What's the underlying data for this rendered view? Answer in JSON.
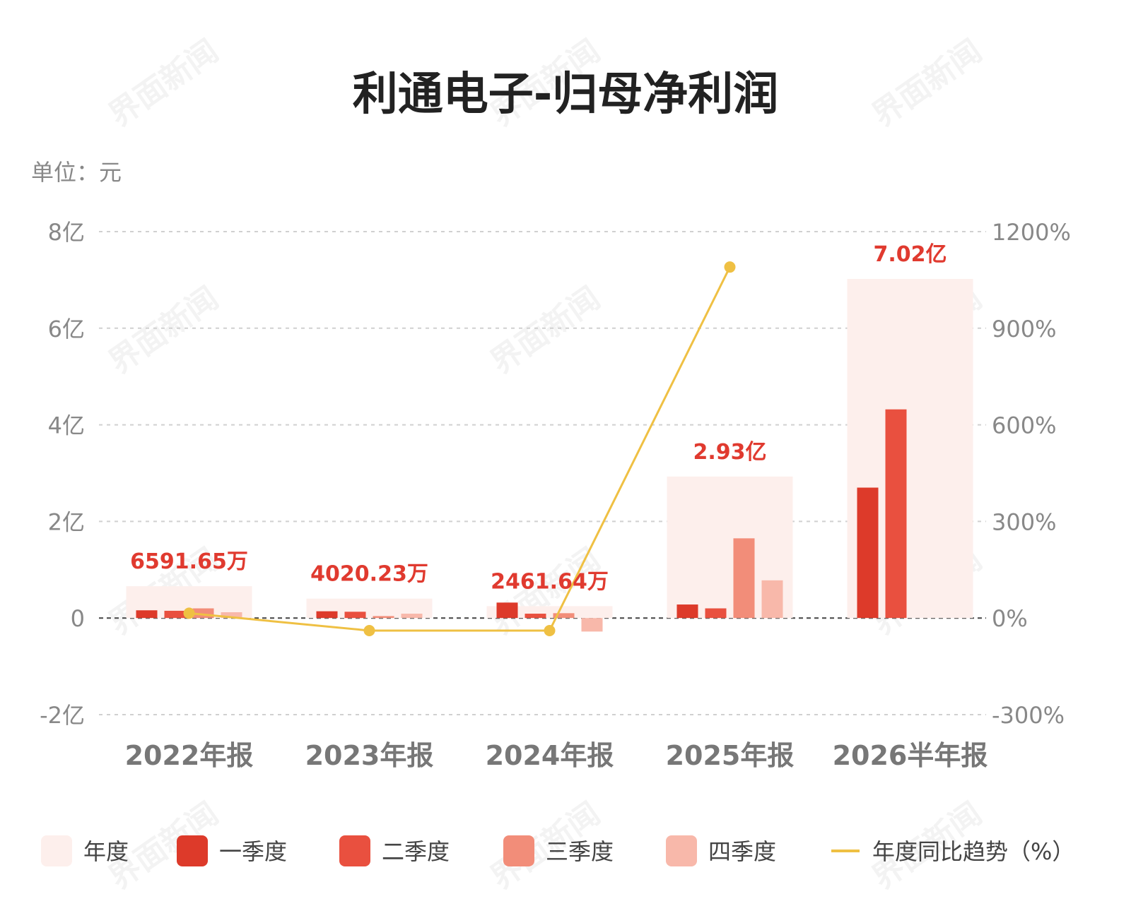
{
  "colors": {
    "annual": "#fdefec",
    "q1": "#dd3a2a",
    "q2": "#e9503f",
    "q3": "#f28d79",
    "q4": "#f8b8aa",
    "trend": "#efc043",
    "label": "#e03a2f",
    "grid": "#d0d0d0",
    "zero": "#444444"
  },
  "watermark": "界面新闻",
  "chart_data": {
    "type": "bar",
    "title": "利通电子-归母净利润",
    "unit_label": "单位：元",
    "y_left": {
      "ticks": [
        "8亿",
        "6亿",
        "4亿",
        "2亿",
        "0",
        "-2亿"
      ],
      "min": -2,
      "max": 8,
      "unit": "亿"
    },
    "y_right": {
      "ticks": [
        "1200%",
        "900%",
        "600%",
        "300%",
        "0%",
        "-300%"
      ],
      "min": -300,
      "max": 1200
    },
    "categories": [
      "2022年报",
      "2023年报",
      "2024年报",
      "2025年报",
      "2026半年报"
    ],
    "annual_labels": [
      "6591.65万",
      "4020.23万",
      "2461.64万",
      "2.93亿",
      "7.02亿"
    ],
    "series": [
      {
        "name": "年度",
        "values": [
          0.659,
          0.402,
          0.246,
          2.93,
          7.02
        ]
      },
      {
        "name": "一季度",
        "values": [
          0.16,
          0.14,
          0.32,
          0.28,
          2.7
        ]
      },
      {
        "name": "二季度",
        "values": [
          0.15,
          0.13,
          0.09,
          0.2,
          4.32
        ]
      },
      {
        "name": "三季度",
        "values": [
          0.2,
          0.04,
          0.1,
          1.65,
          null
        ]
      },
      {
        "name": "四季度",
        "values": [
          0.12,
          0.09,
          -0.28,
          0.78,
          null
        ]
      }
    ],
    "trend": {
      "name": "年度同比趋势（%）",
      "values": [
        15,
        -39,
        -39,
        1090,
        null
      ]
    },
    "legend": [
      "年度",
      "一季度",
      "二季度",
      "三季度",
      "四季度",
      "年度同比趋势（%）"
    ],
    "legend_position": "bottom",
    "grid": true
  }
}
